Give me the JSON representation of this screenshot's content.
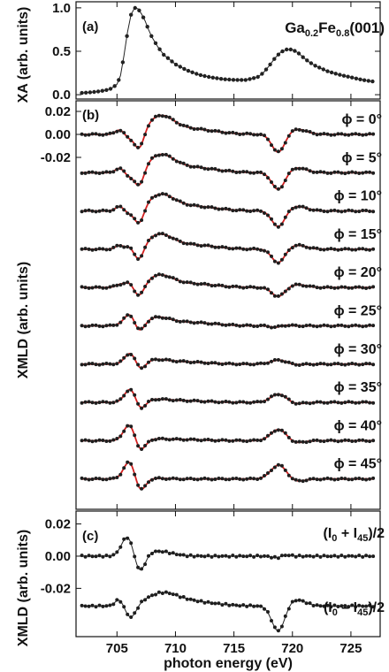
{
  "chart_data": [
    {
      "id": "a",
      "type": "scatter",
      "panel_label": "(a)",
      "annotation": "Ga0.2Fe0.8(001)",
      "annotation_parts": {
        "el1": "Ga",
        "sub1": "0.2",
        "el2": "Fe",
        "sub2": "0.8",
        "rest": "(001)"
      },
      "ylabel": "XA (arb. units)",
      "xlim": [
        701.5,
        727.5
      ],
      "ylim": [
        -0.05,
        1.07
      ],
      "yticks": [
        "0.0",
        "0.5",
        "1.0"
      ],
      "ytick_values": [
        0.0,
        0.5,
        1.0
      ],
      "series": [
        {
          "color": "#222222",
          "x": [
            702,
            703,
            704,
            704.5,
            705,
            705.3,
            705.6,
            705.9,
            706.2,
            706.5,
            706.8,
            707.1,
            707.4,
            707.7,
            708,
            708.5,
            709,
            710,
            711,
            712,
            713,
            714,
            715,
            716,
            717,
            717.5,
            718,
            718.5,
            719,
            719.5,
            720,
            720.5,
            721,
            721.5,
            722,
            723,
            724,
            725,
            726,
            727
          ],
          "y": [
            0.02,
            0.03,
            0.05,
            0.07,
            0.12,
            0.22,
            0.45,
            0.72,
            0.92,
            1.0,
            0.99,
            0.93,
            0.85,
            0.75,
            0.66,
            0.55,
            0.46,
            0.35,
            0.28,
            0.23,
            0.2,
            0.18,
            0.17,
            0.17,
            0.2,
            0.25,
            0.33,
            0.42,
            0.49,
            0.52,
            0.52,
            0.48,
            0.42,
            0.37,
            0.33,
            0.27,
            0.23,
            0.2,
            0.17,
            0.15
          ]
        }
      ]
    },
    {
      "id": "b",
      "type": "line",
      "panel_label": "(b)",
      "ylabel": "XMLD (arb. units)",
      "xlim": [
        701.5,
        727.5
      ],
      "yticks": [
        "0.02",
        "0.00",
        "-0.02"
      ],
      "ytick_values": [
        0.02,
        0.0,
        -0.02
      ],
      "series_note": "experimental points (black) and fit (red line); spectra offset vertically",
      "series": [
        {
          "label": "ϕ = 0°",
          "phi": 0,
          "peaks": [
            [
              705.2,
              0.0035,
              0.35
            ],
            [
              706.0,
              -0.003,
              0.3
            ],
            [
              706.9,
              -0.016,
              0.42
            ],
            [
              708.7,
              0.0135,
              1.1
            ],
            [
              711,
              0.005,
              2.2
            ],
            [
              718.8,
              -0.016,
              0.55
            ],
            [
              720.4,
              0.0045,
              0.8
            ]
          ]
        },
        {
          "label": "ϕ = 5°",
          "phi": 5,
          "peaks": [
            [
              705.2,
              0.0035,
              0.35
            ],
            [
              706.0,
              -0.003,
              0.3
            ],
            [
              706.9,
              -0.015,
              0.42
            ],
            [
              708.7,
              0.013,
              1.1
            ],
            [
              711,
              0.005,
              2.2
            ],
            [
              718.8,
              -0.015,
              0.55
            ],
            [
              720.4,
              0.0042,
              0.8
            ]
          ]
        },
        {
          "label": "ϕ = 10°",
          "phi": 10,
          "peaks": [
            [
              705.2,
              0.0035,
              0.35
            ],
            [
              706.0,
              -0.002,
              0.3
            ],
            [
              706.9,
              -0.014,
              0.42
            ],
            [
              708.7,
              0.012,
              1.1
            ],
            [
              711,
              0.0045,
              2.2
            ],
            [
              718.8,
              -0.014,
              0.55
            ],
            [
              720.4,
              0.004,
              0.8
            ]
          ]
        },
        {
          "label": "ϕ = 15°",
          "phi": 15,
          "peaks": [
            [
              705.2,
              0.003,
              0.35
            ],
            [
              706.1,
              0.002,
              0.3
            ],
            [
              706.9,
              -0.012,
              0.42
            ],
            [
              708.6,
              0.011,
              1.1
            ],
            [
              711,
              0.004,
              2.2
            ],
            [
              718.8,
              -0.012,
              0.55
            ],
            [
              720.4,
              0.0035,
              0.8
            ]
          ]
        },
        {
          "label": "ϕ = 20°",
          "phi": 20,
          "peaks": [
            [
              705.3,
              0.0025,
              0.4
            ],
            [
              706.1,
              0.004,
              0.35
            ],
            [
              706.9,
              -0.01,
              0.45
            ],
            [
              708.6,
              0.009,
              1.1
            ],
            [
              711,
              0.0035,
              2.2
            ],
            [
              718.8,
              -0.008,
              0.55
            ],
            [
              720.4,
              0.0025,
              0.8
            ]
          ]
        },
        {
          "label": "ϕ = 25°",
          "phi": 25,
          "peaks": [
            [
              705.8,
              0.004,
              0.5
            ],
            [
              706.2,
              0.007,
              0.4
            ],
            [
              706.9,
              -0.008,
              0.45
            ],
            [
              708.4,
              0.006,
              1.1
            ],
            [
              711,
              0.003,
              2.2
            ],
            [
              718.6,
              -0.002,
              0.45
            ],
            [
              719.0,
              0.001,
              0.6
            ]
          ]
        },
        {
          "label": "ϕ = 30°",
          "phi": 30,
          "peaks": [
            [
              706.2,
              0.01,
              0.5
            ],
            [
              706.95,
              -0.008,
              0.45
            ],
            [
              708.2,
              0.003,
              1.1
            ],
            [
              710.5,
              0.002,
              2
            ],
            [
              718.9,
              0.004,
              0.7
            ],
            [
              719.8,
              -0.001,
              0.8
            ]
          ]
        },
        {
          "label": "ϕ = 35°",
          "phi": 35,
          "peaks": [
            [
              706.2,
              0.0125,
              0.5
            ],
            [
              706.95,
              -0.009,
              0.45
            ],
            [
              708.2,
              0.002,
              1.1
            ],
            [
              710.5,
              0.0015,
              2
            ],
            [
              718.9,
              0.008,
              0.7
            ],
            [
              719.9,
              -0.002,
              0.8
            ]
          ]
        },
        {
          "label": "ϕ = 40°",
          "phi": 40,
          "peaks": [
            [
              706.1,
              0.0145,
              0.5
            ],
            [
              706.95,
              -0.0105,
              0.45
            ],
            [
              708.2,
              0.001,
              1.1
            ],
            [
              710.5,
              0.001,
              2
            ],
            [
              718.9,
              0.011,
              0.7
            ],
            [
              719.9,
              -0.003,
              0.8
            ]
          ]
        },
        {
          "label": "ϕ = 45°",
          "phi": 45,
          "peaks": [
            [
              706.1,
              0.016,
              0.5
            ],
            [
              706.95,
              -0.012,
              0.45
            ],
            [
              708.2,
              0.0005,
              1.1
            ],
            [
              718.9,
              0.0135,
              0.7
            ],
            [
              719.9,
              -0.0035,
              0.8
            ]
          ]
        }
      ]
    },
    {
      "id": "c",
      "type": "line",
      "panel_label": "(c)",
      "ylabel": "XMLD (arb. units)",
      "xlabel": "photon energy (eV)",
      "xlim": [
        701.5,
        727.5
      ],
      "ylim": [
        -0.05,
        0.028
      ],
      "xticks": [
        "705",
        "710",
        "715",
        "720",
        "725"
      ],
      "xtick_values": [
        705,
        710,
        715,
        720,
        725
      ],
      "yticks": [
        "0.02",
        "0.00",
        "-0.02"
      ],
      "ytick_values": [
        0.02,
        0.0,
        -0.02
      ],
      "series": [
        {
          "label": "(I0 + I45)/2",
          "label_parts": {
            "open": "(I",
            "s1": "0",
            "mid": " + I",
            "s2": "45",
            "close": ")/2"
          },
          "offset": 0.0,
          "peaks": [
            [
              705.9,
              0.012,
              0.5
            ],
            [
              706.95,
              -0.011,
              0.45
            ],
            [
              708.5,
              0.003,
              1.2
            ],
            [
              718.7,
              -0.0015,
              0.4
            ],
            [
              719.2,
              0.001,
              0.5
            ]
          ]
        },
        {
          "label": "(I0 – I45)/2",
          "label_parts": {
            "open": "(I",
            "s1": "0",
            "mid": " – I",
            "s2": "45",
            "close": ")/2"
          },
          "offset": -0.031,
          "peaks": [
            [
              705.2,
              0.004,
              0.35
            ],
            [
              706.2,
              -0.008,
              0.45
            ],
            [
              708.8,
              0.0065,
              1.3
            ],
            [
              711,
              0.003,
              2.2
            ],
            [
              718.8,
              -0.016,
              0.55
            ],
            [
              720.3,
              0.004,
              0.8
            ]
          ]
        }
      ]
    }
  ]
}
